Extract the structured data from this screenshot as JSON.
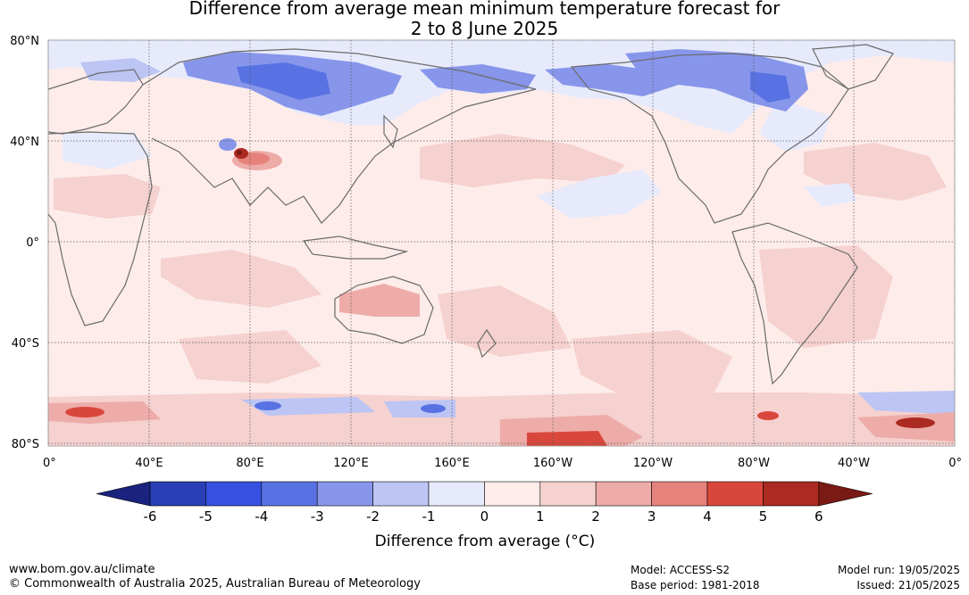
{
  "title_line1": "Difference from average mean minimum temperature forecast for",
  "title_line2": "2 to 8 June 2025",
  "map": {
    "lat_labels": [
      "80°N",
      "40°N",
      "0°",
      "40°S",
      "80°S"
    ],
    "lon_labels": [
      "0°",
      "40°E",
      "80°E",
      "120°E",
      "160°E",
      "160°W",
      "120°W",
      "80°W",
      "40°W",
      "0°"
    ],
    "ocean_color": "#fdecea",
    "land_outline_color": "#6b6b6b",
    "anomaly_regions": [
      {
        "name": "northern-asia-cold",
        "level": -3,
        "lon": 90,
        "lat": 67
      },
      {
        "name": "tibetan-plateau-hot",
        "level": 6,
        "lon": 77,
        "lat": 36
      },
      {
        "name": "australia-warm",
        "level": 2,
        "lon": 135,
        "lat": -25
      },
      {
        "name": "south-america-warm",
        "level": 2,
        "lon": -55,
        "lat": -18
      },
      {
        "name": "southern-ocean-hot",
        "level": 5,
        "lon": 10,
        "lat": -69
      },
      {
        "name": "antarctic-edge-hot",
        "level": 5,
        "lon": -20,
        "lat": -73
      },
      {
        "name": "south-pacific-hot",
        "level": 4,
        "lon": -140,
        "lat": -78
      },
      {
        "name": "canada-cold",
        "level": -2,
        "lon": -105,
        "lat": 68
      }
    ]
  },
  "colorbar": {
    "ticks": [
      "-6",
      "-5",
      "-4",
      "-3",
      "-2",
      "-1",
      "0",
      "1",
      "2",
      "3",
      "4",
      "5",
      "6"
    ],
    "colors": [
      "#1a237e",
      "#2a3fb5",
      "#3651e0",
      "#5872e3",
      "#8796ea",
      "#bcc5f3",
      "#e7eafb",
      "#fdecea",
      "#f5d1cf",
      "#eeaca9",
      "#e6827c",
      "#d9473c",
      "#ab2a22",
      "#7a1a15"
    ],
    "label": "Difference from average (°C)"
  },
  "footer": {
    "website": "www.bom.gov.au/climate",
    "copyright": "© Commonwealth of Australia 2025, Australian Bureau of Meteorology",
    "model": "Model: ACCESS-S2",
    "base_period": "Base period: 1981-2018",
    "model_run": "Model run: 19/05/2025",
    "issued": "Issued: 21/05/2025"
  }
}
